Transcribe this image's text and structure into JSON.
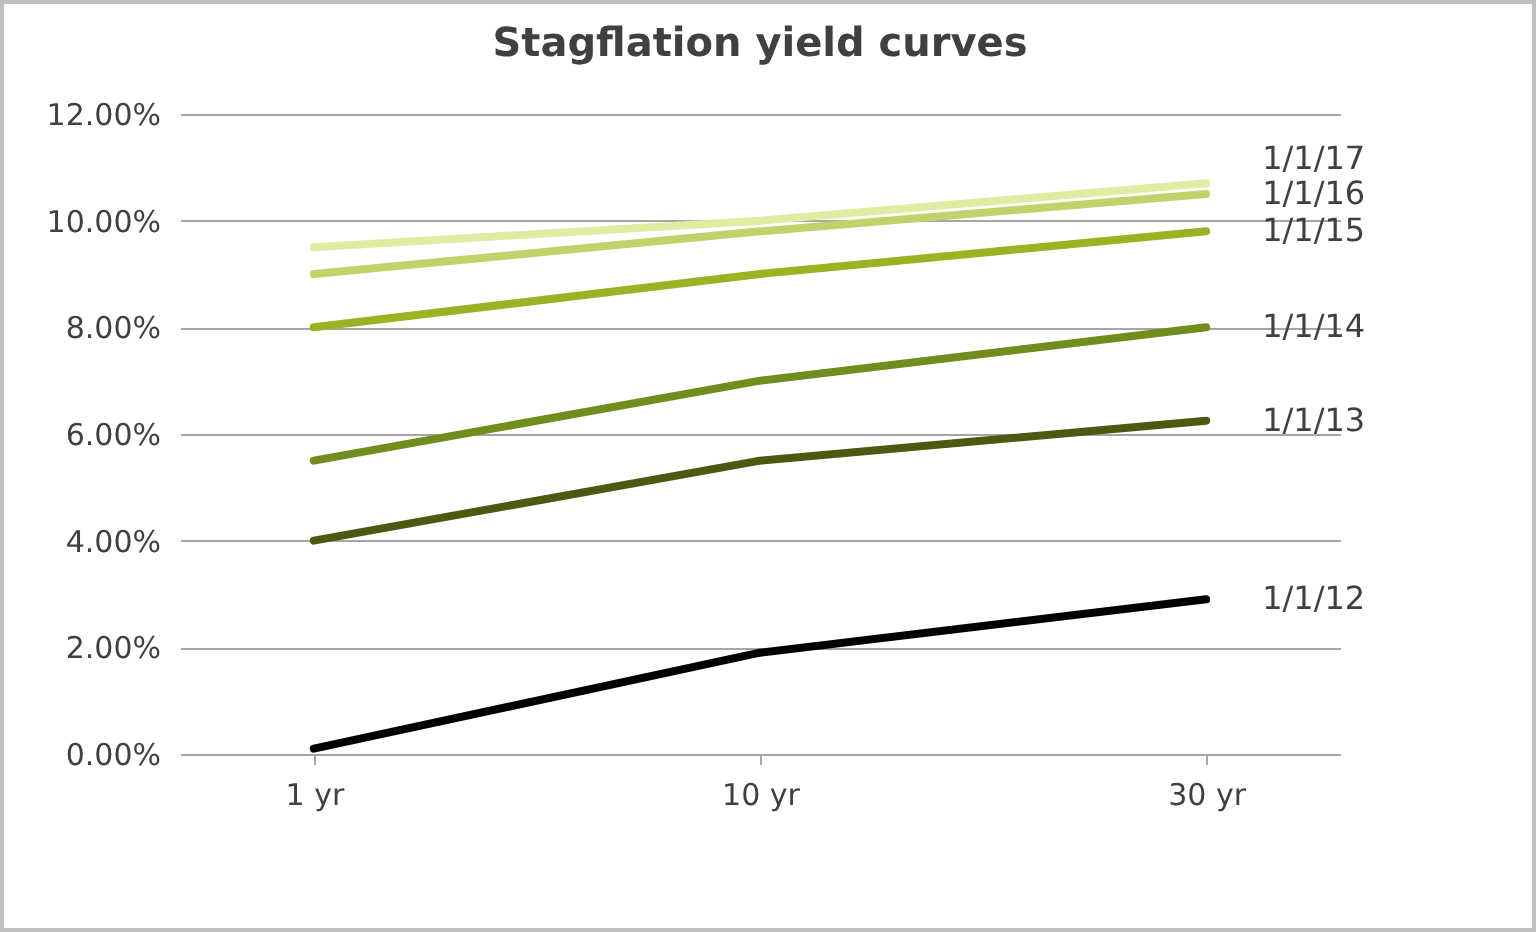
{
  "chart_data": {
    "type": "line",
    "title": "Stagflation yield curves",
    "categories": [
      "1 yr",
      "10 yr",
      "30 yr"
    ],
    "series": [
      {
        "name": "1/1/12",
        "color": "#000000",
        "values": [
          0.1,
          1.9,
          2.9
        ]
      },
      {
        "name": "1/1/13",
        "color": "#4b5a12",
        "values": [
          4.0,
          5.5,
          6.25
        ]
      },
      {
        "name": "1/1/14",
        "color": "#728c1e",
        "values": [
          5.5,
          7.0,
          8.0
        ]
      },
      {
        "name": "1/1/15",
        "color": "#9cb222",
        "values": [
          8.0,
          9.0,
          9.8
        ]
      },
      {
        "name": "1/1/16",
        "color": "#c2d26a",
        "values": [
          9.0,
          9.8,
          10.5
        ]
      },
      {
        "name": "1/1/17",
        "color": "#e2eba2",
        "values": [
          9.5,
          10.0,
          10.7
        ]
      }
    ],
    "ylim": [
      0,
      12
    ],
    "yticks": [
      {
        "value": 0,
        "label": "0.00%"
      },
      {
        "value": 2,
        "label": "2.00%"
      },
      {
        "value": 4,
        "label": "4.00%"
      },
      {
        "value": 6,
        "label": "6.00%"
      },
      {
        "value": 8,
        "label": "8.00%"
      },
      {
        "value": 10,
        "label": "10.00%"
      },
      {
        "value": 12,
        "label": "12.00%"
      }
    ],
    "grid": "y",
    "legend": false,
    "marker": "none",
    "line_style": "solid"
  }
}
